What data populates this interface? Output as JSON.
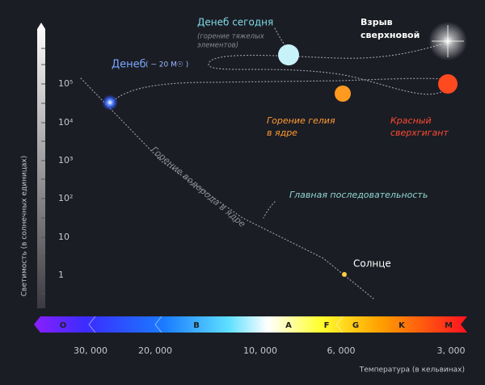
{
  "y_axis": {
    "label": "Светимость (в солнечных единицах)",
    "ticks": [
      "10⁵",
      "10⁴",
      "10³",
      "10²",
      "10",
      "1"
    ]
  },
  "x_axis": {
    "label": "Температура (в кельвинах)",
    "ticks": [
      "30, 000",
      "20, 000",
      "10, 000",
      "6, 000",
      "3, 000"
    ]
  },
  "spectral_classes": [
    "O",
    "B",
    "A",
    "F",
    "G",
    "K",
    "M"
  ],
  "labels": {
    "deneb": "Денеб",
    "deneb_mass": "( ~ 20 M☉ )",
    "deneb_today": "Денеб сегодня",
    "deneb_today_note": [
      "(горение тяжелых",
      "элементов)"
    ],
    "supernova": [
      "Взрыв",
      "сверхновой"
    ],
    "helium": [
      "Горение гелия",
      "в ядре"
    ],
    "red_supergiant": [
      "Красный",
      "сверхгигант"
    ],
    "hydrogen": "Горение водорода в ядре",
    "main_sequence": "Главная последовательность",
    "sun": "Солнце"
  }
}
